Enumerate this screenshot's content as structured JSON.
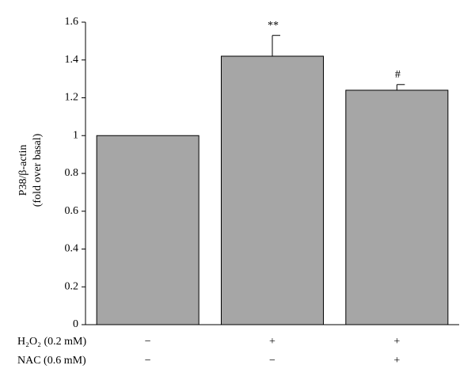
{
  "chart_data": {
    "type": "bar",
    "ylabel": [
      "P38/β-actin",
      "(fold over basal)"
    ],
    "values": [
      1,
      1.42,
      1.24
    ],
    "errors": [
      null,
      0.11,
      0.03
    ],
    "annotations": [
      null,
      "**",
      "#"
    ],
    "color": "#a6a6a6",
    "ylim": [
      0,
      1.6
    ],
    "yticks": [
      0,
      0.2,
      0.4,
      0.6,
      0.8,
      1,
      1.2,
      1.4,
      1.6
    ],
    "treatments": [
      {
        "label": "H₂O₂ (0.2 mM)",
        "values": [
          "−",
          "+",
          "+"
        ]
      },
      {
        "label": "NAC (0.6 mM)",
        "values": [
          "−",
          "−",
          "+"
        ]
      }
    ]
  }
}
